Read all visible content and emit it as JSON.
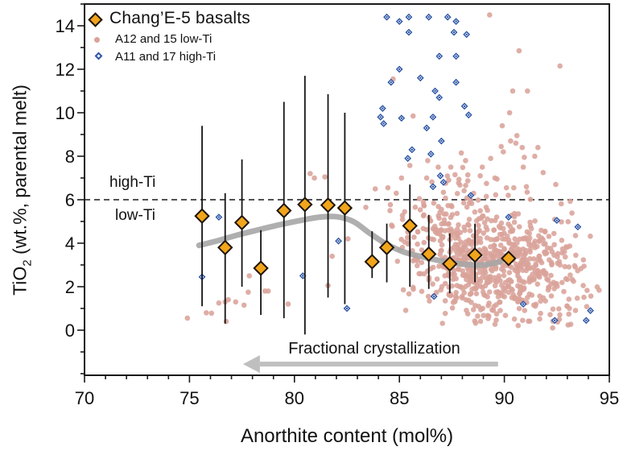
{
  "figure": {
    "x_axis": {
      "label": "Anorthite content (mol%)",
      "min": 70,
      "max": 95,
      "major_ticks": [
        70,
        75,
        80,
        85,
        90,
        95
      ],
      "minor_step": 1
    },
    "y_axis": {
      "label_main": "TiO",
      "label_sub": "2",
      "label_rest": " (wt.%, parental melt)",
      "min": -2.07,
      "max": 15.0,
      "major_ticks": [
        0,
        2,
        4,
        6,
        8,
        10,
        12,
        14
      ],
      "minor_step": 1
    }
  },
  "legend": {
    "items": [
      {
        "label": "Chang’E-5 basalts",
        "marker": "orange-diamond"
      },
      {
        "label": "A12 and 15 low-Ti",
        "marker": "pink-dot"
      },
      {
        "label": "A11 and 17 high-Ti",
        "marker": "blue-diamond"
      }
    ]
  },
  "annotations": {
    "high_ti": "high-Ti",
    "low_ti": "low-Ti",
    "divider_y": 6,
    "arrow_label": "Fractional crystallization",
    "arrow": {
      "x_tip": 77.55,
      "x_tail": 89.7,
      "y": -1.56
    }
  },
  "colors": {
    "ce5_fill": "#F2A51B",
    "ce5_stroke": "#1d1408",
    "lowti": "#D9A39A",
    "highti": "#2C55A5",
    "trend": "#A6A6A6",
    "arrow": "#BFBFBF",
    "divider": "#1a1a1a",
    "frame": "#1a1a1a",
    "errorbar": "#151515"
  },
  "chart_data": {
    "type": "scatter",
    "title": "",
    "xlabel": "Anorthite content (mol%)",
    "ylabel": "TiO2 (wt.%, parental melt)",
    "xlim": [
      70,
      95
    ],
    "ylim": [
      -2.07,
      15.0
    ],
    "grid": false,
    "legend_position": "top-left",
    "divider_line_y": 6,
    "series": [
      {
        "name": "Chang’E-5 basalts",
        "marker": "diamond",
        "points": [
          {
            "x": 75.6,
            "y": 5.25,
            "lo": 1.1,
            "hi": 9.4
          },
          {
            "x": 76.7,
            "y": 3.8,
            "lo": 0.3,
            "hi": 6.3
          },
          {
            "x": 77.5,
            "y": 4.95,
            "lo": 2.0,
            "hi": 7.85
          },
          {
            "x": 78.4,
            "y": 2.85,
            "lo": 0.7,
            "hi": 4.6
          },
          {
            "x": 79.5,
            "y": 5.5,
            "lo": 0.55,
            "hi": 10.5
          },
          {
            "x": 80.5,
            "y": 5.78,
            "lo": -0.2,
            "hi": 11.7
          },
          {
            "x": 81.6,
            "y": 5.75,
            "lo": 1.5,
            "hi": 10.85
          },
          {
            "x": 82.4,
            "y": 5.62,
            "lo": 1.2,
            "hi": 10.0
          },
          {
            "x": 83.7,
            "y": 3.15,
            "lo": 2.4,
            "hi": 4.55
          },
          {
            "x": 84.4,
            "y": 3.8,
            "lo": 2.2,
            "hi": 4.9
          },
          {
            "x": 85.5,
            "y": 4.8,
            "lo": 2.0,
            "hi": 6.7
          },
          {
            "x": 86.4,
            "y": 3.5,
            "lo": 1.9,
            "hi": 5.3
          },
          {
            "x": 87.4,
            "y": 3.05,
            "lo": 1.7,
            "hi": 4.45
          },
          {
            "x": 88.6,
            "y": 3.45,
            "lo": 2.2,
            "hi": 4.9
          },
          {
            "x": 90.2,
            "y": 3.3,
            "lo": 3.3,
            "hi": 3.3
          }
        ]
      },
      {
        "name": "A12 and 15 low-Ti",
        "marker": "circle",
        "points": [
          [
            74.9,
            0.55
          ],
          [
            75.8,
            0.8
          ],
          [
            76.05,
            0.78
          ],
          [
            76.4,
            1.25
          ],
          [
            76.7,
            1.3
          ],
          [
            76.75,
            0.4
          ],
          [
            76.85,
            1.4
          ],
          [
            77.2,
            1.3
          ],
          [
            77.6,
            1.15
          ],
          [
            77.8,
            1.75
          ],
          [
            78.6,
            1.8
          ],
          [
            78.75,
            1.8
          ],
          [
            79.7,
            1.2
          ],
          [
            77.85,
            2.5
          ],
          [
            81.6,
            2.05
          ],
          [
            81.8,
            3.4
          ],
          [
            82.55,
            4.2
          ],
          [
            80.75,
            7.2
          ],
          [
            80.95,
            7.0
          ],
          [
            81.45,
            7.05
          ],
          [
            83.4,
            5.65
          ],
          [
            83.85,
            6.5
          ],
          [
            84.45,
            6.55
          ],
          [
            84.55,
            5.5
          ],
          [
            84.85,
            6.3
          ],
          [
            85.1,
            7.0
          ],
          [
            85.25,
            5.45
          ],
          [
            85.95,
            6.05
          ],
          [
            86.3,
            7.0
          ],
          [
            84.7,
            11.55
          ],
          [
            85.65,
            9.85
          ],
          [
            89.3,
            14.5
          ],
          [
            90.7,
            12.85
          ],
          [
            92.65,
            12.15
          ],
          [
            90.4,
            11.0
          ],
          [
            91.1,
            11.0
          ],
          [
            90.25,
            10.0
          ],
          [
            89.9,
            9.4
          ],
          [
            90.6,
            8.95
          ],
          [
            90.3,
            8.7
          ],
          [
            90.55,
            8.6
          ],
          [
            89.85,
            8.45
          ],
          [
            89.95,
            8.2
          ],
          [
            90.85,
            8.4
          ],
          [
            91.6,
            8.4
          ],
          [
            91.45,
            8.0
          ],
          [
            90.95,
            7.95
          ],
          [
            89.35,
            7.9
          ],
          [
            88.95,
            7.5
          ],
          [
            90.9,
            7.5
          ],
          [
            91.85,
            7.25
          ],
          [
            89.55,
            7.0
          ],
          [
            89.65,
            6.95
          ],
          [
            89.15,
            6.75
          ],
          [
            90.1,
            6.55
          ],
          [
            90.45,
            6.55
          ],
          [
            91.05,
            6.6
          ],
          [
            92.45,
            6.7
          ],
          [
            86.35,
            7.8
          ],
          [
            86.85,
            7.5
          ],
          [
            87.45,
            7.5
          ],
          [
            87.65,
            7.15
          ],
          [
            87.35,
            6.9
          ],
          [
            88.85,
            7.1
          ],
          [
            87.95,
            8.15
          ],
          [
            88.15,
            7.8
          ]
        ],
        "clusters": [
          {
            "cx": 89.6,
            "cy": 3.0,
            "sx": 1.55,
            "sy": 0.95,
            "n": 430,
            "seed": 11
          },
          {
            "cx": 86.9,
            "cy": 3.9,
            "sx": 1.25,
            "sy": 1.25,
            "n": 140,
            "seed": 23
          },
          {
            "cx": 88.8,
            "cy": 5.3,
            "sx": 1.35,
            "sy": 0.7,
            "n": 70,
            "seed": 37
          },
          {
            "cx": 91.9,
            "cy": 2.7,
            "sx": 1.25,
            "sy": 1.15,
            "n": 85,
            "seed": 53
          },
          {
            "cx": 90.0,
            "cy": 1.05,
            "sx": 1.7,
            "sy": 0.45,
            "n": 45,
            "seed": 71
          }
        ],
        "cluster_clip": {
          "x": [
            83.3,
            94.7
          ],
          "y": [
            0.1,
            7.65
          ]
        }
      },
      {
        "name": "A11 and 17 high-Ti",
        "marker": "open-diamond",
        "points": [
          [
            84.4,
            14.4
          ],
          [
            85.0,
            14.2
          ],
          [
            85.45,
            14.4
          ],
          [
            86.4,
            14.4
          ],
          [
            87.3,
            14.4
          ],
          [
            87.7,
            14.2
          ],
          [
            85.45,
            13.7
          ],
          [
            87.6,
            13.7
          ],
          [
            88.2,
            13.6
          ],
          [
            86.9,
            12.6
          ],
          [
            87.7,
            12.6
          ],
          [
            85.0,
            12.0
          ],
          [
            84.6,
            11.4
          ],
          [
            86.0,
            11.6
          ],
          [
            87.7,
            11.4
          ],
          [
            86.7,
            11.0
          ],
          [
            86.9,
            10.7
          ],
          [
            84.2,
            10.2
          ],
          [
            88.1,
            10.3
          ],
          [
            84.1,
            9.8
          ],
          [
            85.1,
            9.75
          ],
          [
            86.6,
            9.8
          ],
          [
            88.3,
            9.9
          ],
          [
            84.25,
            9.5
          ],
          [
            86.3,
            9.3
          ],
          [
            87.0,
            8.7
          ],
          [
            85.6,
            8.3
          ],
          [
            86.5,
            8.1
          ],
          [
            85.4,
            7.9
          ],
          [
            86.95,
            7.1
          ],
          [
            86.6,
            6.6
          ],
          [
            87.1,
            6.8
          ],
          [
            88.4,
            6.2
          ],
          [
            76.4,
            5.2
          ],
          [
            75.6,
            2.45
          ],
          [
            80.4,
            2.5
          ],
          [
            82.1,
            4.1
          ],
          [
            82.5,
            1.0
          ],
          [
            86.65,
            1.55
          ],
          [
            90.2,
            5.2
          ],
          [
            92.5,
            5.05
          ],
          [
            93.5,
            4.75
          ],
          [
            90.9,
            1.2
          ],
          [
            94.1,
            0.9
          ],
          [
            93.9,
            0.45
          ],
          [
            92.4,
            0.45
          ]
        ]
      }
    ],
    "trend_line": {
      "points": [
        [
          75.45,
          3.9
        ],
        [
          76.3,
          4.1
        ],
        [
          77.3,
          4.38
        ],
        [
          78.3,
          4.62
        ],
        [
          79.3,
          4.85
        ],
        [
          80.3,
          5.05
        ],
        [
          81.2,
          5.2
        ],
        [
          82.0,
          5.22
        ],
        [
          82.8,
          5.0
        ],
        [
          83.6,
          4.45
        ],
        [
          84.4,
          3.95
        ],
        [
          85.2,
          3.6
        ],
        [
          86.2,
          3.35
        ],
        [
          87.2,
          3.15
        ],
        [
          88.2,
          3.02
        ],
        [
          89.0,
          3.0
        ],
        [
          89.8,
          3.15
        ]
      ]
    }
  }
}
